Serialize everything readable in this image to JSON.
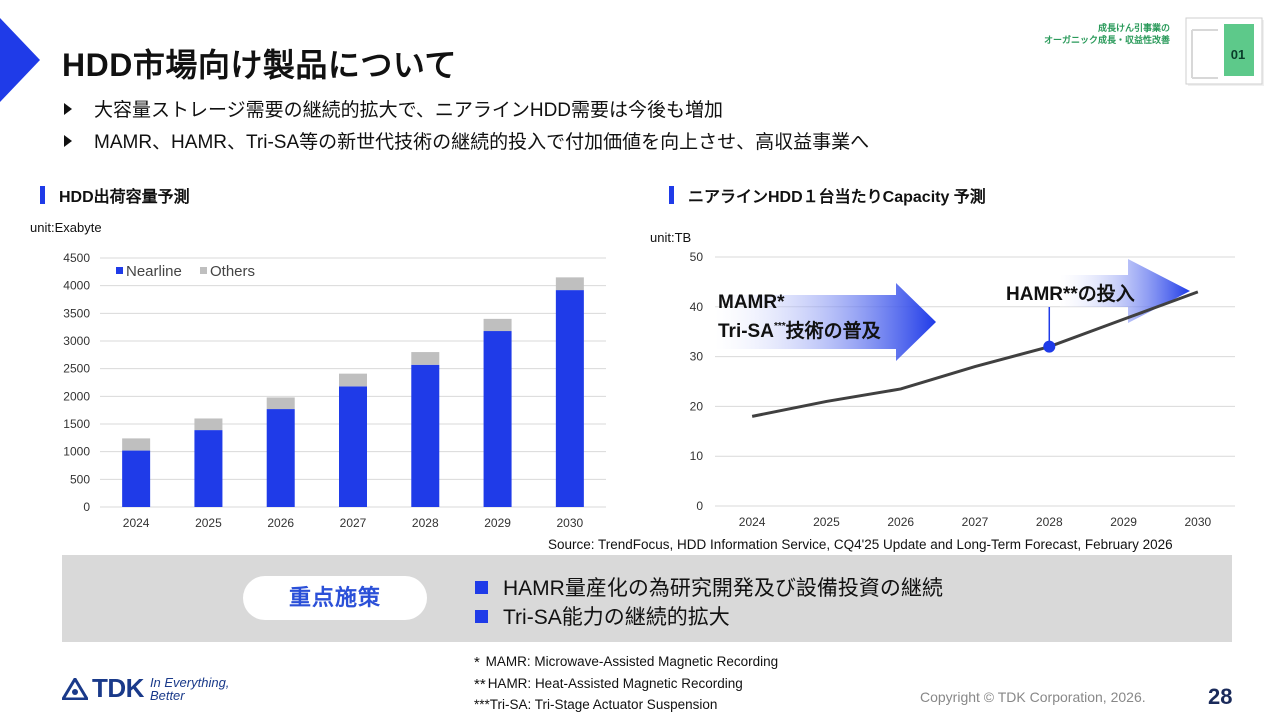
{
  "title": "HDD市場向け製品について",
  "tag": {
    "line1": "成長けん引事業の",
    "line2": "オーガニック成長・収益性改善",
    "number": "01",
    "accent": "#5dc98a"
  },
  "bullets": [
    "大容量ストレージ需要の継続的拡大で、ニアラインHDD需要は今後も増加",
    "MAMR、HAMR、Tri-SA等の新世代技術の継続的投入で付加価値を向上させ、高収益事業へ"
  ],
  "left_chart_heading": "HDD出荷容量予測",
  "right_chart_heading": "ニアラインHDD１台当たりCapacity 予測",
  "source": "Source: TrendFocus, HDD Information Service, CQ4'25 Update and Long-Term Forecast, February 2026",
  "focus": {
    "label": "重点施策",
    "items": [
      "HAMR量産化の為研究開発及び設備投資の継続",
      "Tri-SA能力の継続的拡大"
    ]
  },
  "footnotes": [
    {
      "mark": "*",
      "text": " MAMR: Microwave-Assisted Magnetic Recording"
    },
    {
      "mark": "**",
      "text": "HAMR: Heat-Assisted Magnetic Recording"
    },
    {
      "mark": "",
      "text": "***Tri-SA: Tri-Stage Actuator Suspension"
    }
  ],
  "copyright": "Copyright  © TDK Corporation, 2026.",
  "page_number": "28",
  "logo": {
    "name": "TDK",
    "tagline_1": "In Everything,",
    "tagline_2": "Better"
  },
  "colors": {
    "brand_blue": "#1f3be8",
    "others_gray": "#bfbfbf",
    "line": "#404040"
  },
  "chart_data": [
    {
      "type": "bar",
      "stacked": true,
      "unit_label": "unit:Exabyte",
      "categories": [
        "2024",
        "2025",
        "2026",
        "2027",
        "2028",
        "2029",
        "2030"
      ],
      "series": [
        {
          "name": "Nearline",
          "values": [
            1020,
            1390,
            1770,
            2180,
            2570,
            3180,
            3920
          ]
        },
        {
          "name": "Others",
          "values": [
            220,
            210,
            210,
            230,
            230,
            220,
            230
          ]
        }
      ],
      "ylim": [
        0,
        4500
      ],
      "yticks": [
        0,
        500,
        1000,
        1500,
        2000,
        2500,
        3000,
        3500,
        4000,
        4500
      ],
      "grid": true,
      "legend_position": "top-left"
    },
    {
      "type": "line",
      "unit_label": "unit:TB",
      "categories": [
        "2024",
        "2025",
        "2026",
        "2027",
        "2028",
        "2029",
        "2030"
      ],
      "series": [
        {
          "values": [
            18,
            21,
            23.5,
            28,
            32,
            37.5,
            43
          ]
        }
      ],
      "ylim": [
        0,
        50
      ],
      "yticks": [
        0,
        10,
        20,
        30,
        40,
        50
      ],
      "grid": true,
      "highlight": {
        "x": "2028",
        "y": 32
      },
      "annotations": {
        "mamr_line1": "MAMR*",
        "mamr_line2": "Tri-SA",
        "mamr_sup": "***",
        "mamr_line2_suffix": "技術の普及",
        "hamr": "HAMR**の投入"
      }
    }
  ]
}
